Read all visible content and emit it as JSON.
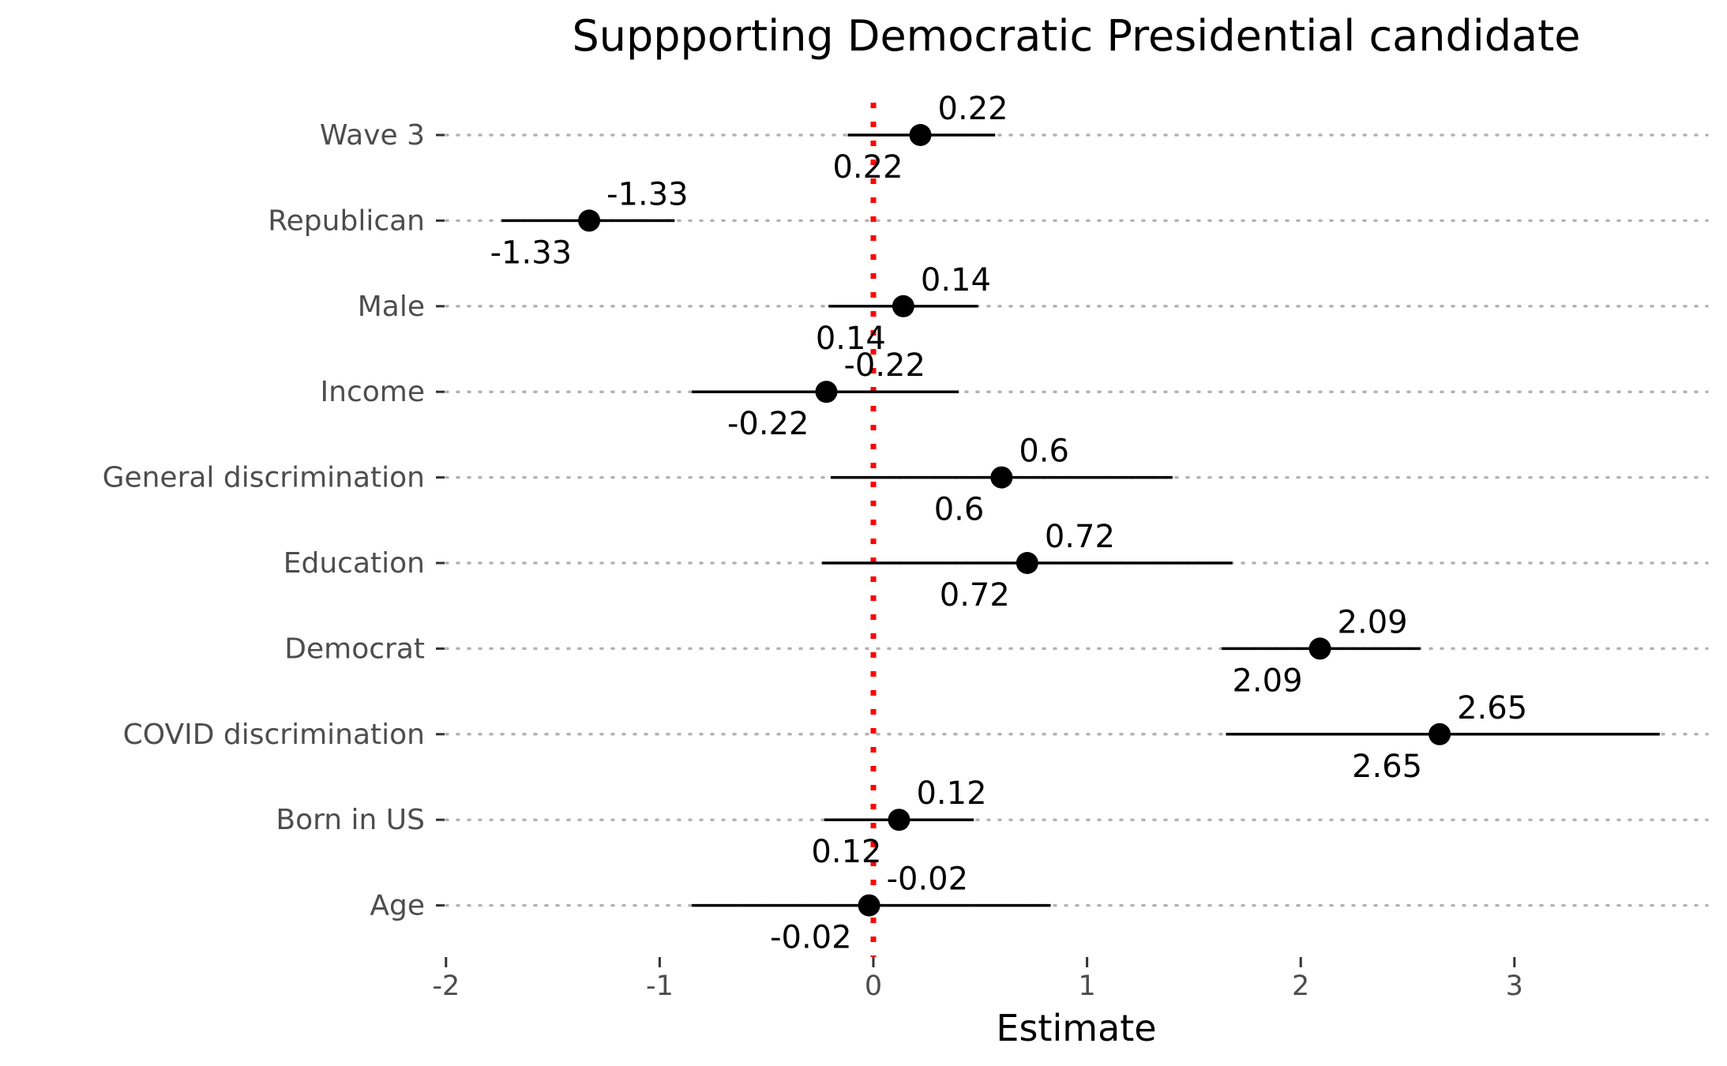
{
  "chart_data": {
    "type": "scatter",
    "title": "Suppporting Democratic Presidential candidate",
    "xlabel": "Estimate",
    "ylabel": "",
    "xlim": [
      -2,
      3.9
    ],
    "xticks": [
      -2,
      -1,
      0,
      1,
      2,
      3
    ],
    "xtick_labels": [
      "-2",
      "-1",
      "0",
      "1",
      "2",
      "3"
    ],
    "reference_line": {
      "x": 0,
      "color": "#ff0000",
      "style": "dotted"
    },
    "grid": "horizontal dotted",
    "legend": "none",
    "point_color": "#000000",
    "categories": [
      "Wave 3",
      "Republican",
      "Male",
      "Income",
      "General discrimination",
      "Education",
      "Democrat",
      "COVID discrimination",
      "Born in US",
      "Age"
    ],
    "estimates": [
      0.22,
      -1.33,
      0.14,
      -0.22,
      0.6,
      0.72,
      2.09,
      2.65,
      0.12,
      -0.02
    ],
    "ci_low": [
      -0.12,
      -1.74,
      -0.21,
      -0.85,
      -0.2,
      -0.24,
      1.63,
      1.65,
      -0.23,
      -0.85
    ],
    "ci_high": [
      0.57,
      -0.93,
      0.49,
      0.4,
      1.4,
      1.68,
      2.56,
      3.68,
      0.47,
      0.83
    ],
    "labels_above": [
      "0.22",
      "-1.33",
      "0.14",
      "-0.22",
      "0.6",
      "0.72",
      "2.09",
      "2.65",
      "0.12",
      "-0.02"
    ],
    "labels_below": [
      "0.22",
      "-1.33",
      "0.14",
      "-0.22",
      "0.6",
      "0.72",
      "2.09",
      "2.65",
      "0.12",
      "-0.02"
    ]
  }
}
